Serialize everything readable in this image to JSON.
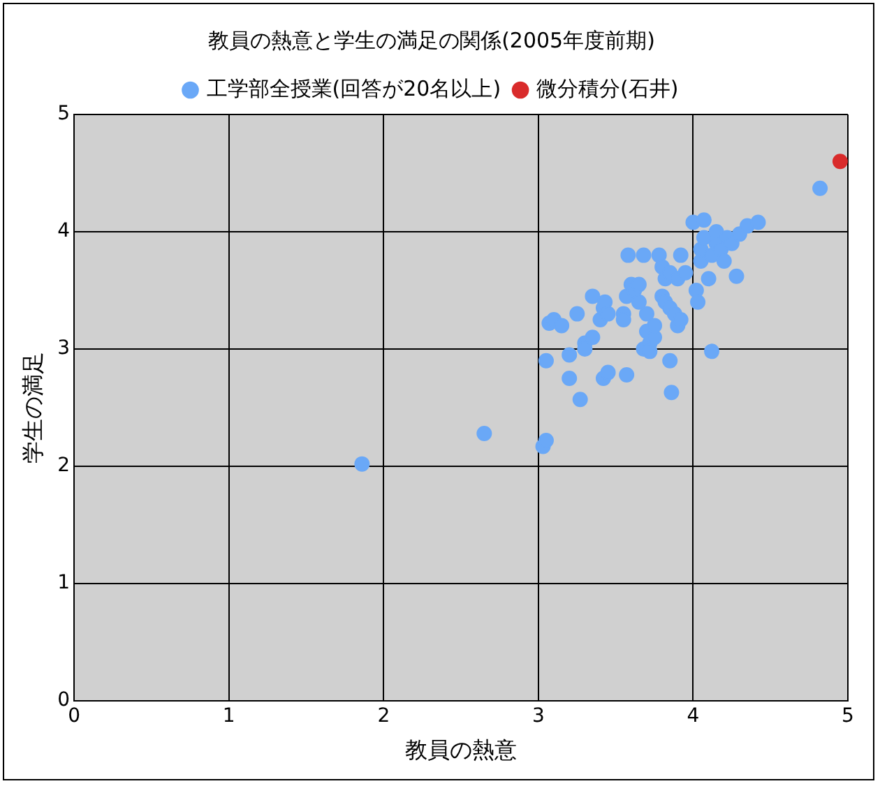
{
  "chart_data": {
    "type": "scatter",
    "title": "教員の熱意と学生の満足の関係(2005年度前期)",
    "xlabel": "教員の熱意",
    "ylabel": "学生の満足",
    "series": [
      {
        "name": "工学部全授業(回答が20名以上)",
        "color": "#6aa8f7",
        "x": [
          1.86,
          2.65,
          3.03,
          3.05,
          3.05,
          3.07,
          3.1,
          3.15,
          3.2,
          3.2,
          3.25,
          3.27,
          3.3,
          3.3,
          3.35,
          3.35,
          3.4,
          3.42,
          3.43,
          3.45,
          3.42,
          3.45,
          3.55,
          3.55,
          3.57,
          3.57,
          3.58,
          3.6,
          3.62,
          3.65,
          3.65,
          3.68,
          3.7,
          3.7,
          3.68,
          3.72,
          3.72,
          3.75,
          3.75,
          3.78,
          3.8,
          3.8,
          3.82,
          3.82,
          3.85,
          3.85,
          3.85,
          3.86,
          3.88,
          3.9,
          3.9,
          3.92,
          3.92,
          3.95,
          4.0,
          4.02,
          4.03,
          4.05,
          4.05,
          4.07,
          4.07,
          4.1,
          4.12,
          4.12,
          4.15,
          4.15,
          4.18,
          4.2,
          4.22,
          4.25,
          4.28,
          4.3,
          4.35,
          4.42,
          4.82
        ],
        "values": [
          2.02,
          2.28,
          2.17,
          2.22,
          2.9,
          3.22,
          3.25,
          3.2,
          2.95,
          2.75,
          3.3,
          2.57,
          3.05,
          3.0,
          3.1,
          3.45,
          3.25,
          3.35,
          3.4,
          3.3,
          2.75,
          2.8,
          3.3,
          3.25,
          3.45,
          2.78,
          3.8,
          3.55,
          3.5,
          3.4,
          3.55,
          3.8,
          3.3,
          3.15,
          3.0,
          3.05,
          2.98,
          3.1,
          3.2,
          3.8,
          3.7,
          3.45,
          3.6,
          3.4,
          3.65,
          3.35,
          2.9,
          2.63,
          3.3,
          3.6,
          3.2,
          3.8,
          3.25,
          3.65,
          4.08,
          3.5,
          3.4,
          3.75,
          3.85,
          4.1,
          3.95,
          3.6,
          3.8,
          2.98,
          3.9,
          4.0,
          3.85,
          3.75,
          3.95,
          3.9,
          3.62,
          3.98,
          4.05,
          4.08,
          4.37
        ]
      },
      {
        "name": "微分積分(石井)",
        "color": "#d92b2b",
        "x": [
          4.95
        ],
        "values": [
          4.6
        ]
      }
    ],
    "xlim": [
      0,
      5
    ],
    "xticks": [
      0,
      1,
      2,
      3,
      4,
      5
    ],
    "ylim": [
      0,
      5
    ],
    "yticks": [
      0,
      1,
      2,
      3,
      4,
      5
    ],
    "grid": true,
    "legend": "top",
    "marker": "circle"
  }
}
